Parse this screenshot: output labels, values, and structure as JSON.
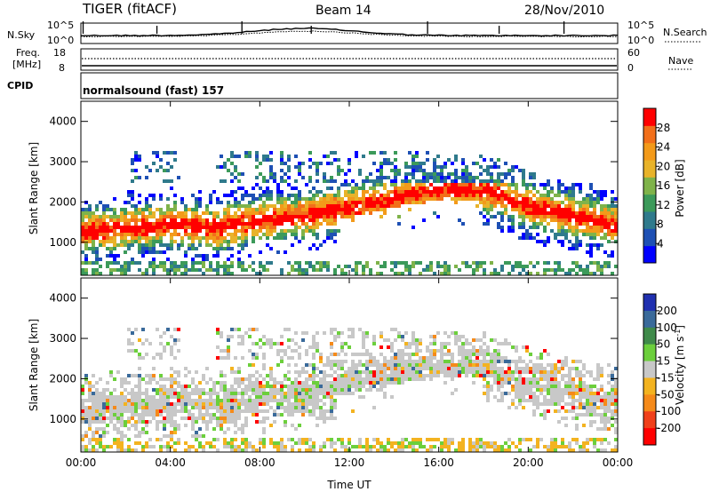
{
  "header": {
    "station": "TIGER (fitACF)",
    "beam": "Beam 14",
    "date": "28/Nov/2010"
  },
  "noise_panel": {
    "left_label": "N.Sky",
    "left_ticks": [
      "10^5",
      "10^0"
    ],
    "right_label": "N.Search",
    "right_ticks": [
      "10^5",
      "10^0"
    ]
  },
  "freq_panel": {
    "left_label_line1": "Freq.",
    "left_label_line2": "[MHz]",
    "left_ticks": [
      "18",
      "8"
    ],
    "right_label": "Nave",
    "right_ticks": [
      "60",
      "0"
    ]
  },
  "cpid_panel": {
    "label": "CPID",
    "text": "normalsound (fast) 157"
  },
  "chart_data": [
    {
      "type": "heatmap",
      "name": "power",
      "ylabel": "Slant Range [km]",
      "xlabel": "",
      "x_ticks": [
        "00:00",
        "04:00",
        "08:00",
        "12:00",
        "16:00",
        "20:00",
        "00:00"
      ],
      "y_ticks": [
        "1000",
        "2000",
        "3000",
        "4000"
      ],
      "xlim_hours": [
        0,
        24
      ],
      "ylim_km": [
        180,
        4500
      ],
      "colorbar": {
        "label": "Power [dB]",
        "ticks": [
          "4",
          "8",
          "12",
          "16",
          "20",
          "24",
          "28"
        ],
        "range": [
          0,
          32
        ],
        "colors": [
          "#0000ff",
          "#1e50b4",
          "#2f7a8c",
          "#3c9a5a",
          "#7fb34a",
          "#e8b32a",
          "#f39a1a",
          "#f26f1a",
          "#ff0000"
        ]
      },
      "echo_band": {
        "center_km": [
          [
            0,
            1250
          ],
          [
            2,
            1350
          ],
          [
            4,
            1450
          ],
          [
            6,
            1350
          ],
          [
            8,
            1550
          ],
          [
            10,
            1650
          ],
          [
            12,
            1850
          ],
          [
            14,
            2100
          ],
          [
            16,
            2300
          ],
          [
            18,
            2300
          ],
          [
            20,
            1900
          ],
          [
            22,
            1650
          ],
          [
            24,
            1400
          ]
        ],
        "max_power_db": 30
      }
    },
    {
      "type": "heatmap",
      "name": "velocity",
      "ylabel": "Slant Range [km]",
      "xlabel": "Time UT",
      "x_ticks": [
        "00:00",
        "04:00",
        "08:00",
        "12:00",
        "16:00",
        "20:00",
        "00:00"
      ],
      "y_ticks": [
        "1000",
        "2000",
        "3000",
        "4000"
      ],
      "xlim_hours": [
        0,
        24
      ],
      "ylim_km": [
        180,
        4500
      ],
      "colorbar": {
        "label": "Velocity [m s^-1]",
        "ticks": [
          "200",
          "100",
          "50",
          "15",
          "-15",
          "-50",
          "-100",
          "-200"
        ],
        "colors": [
          "#2030b0",
          "#3a6a9a",
          "#3f8a4a",
          "#6ccf3c",
          "#c8c8c8",
          "#f3b320",
          "#f58a1a",
          "#f0401a",
          "#ff0000"
        ]
      }
    }
  ]
}
